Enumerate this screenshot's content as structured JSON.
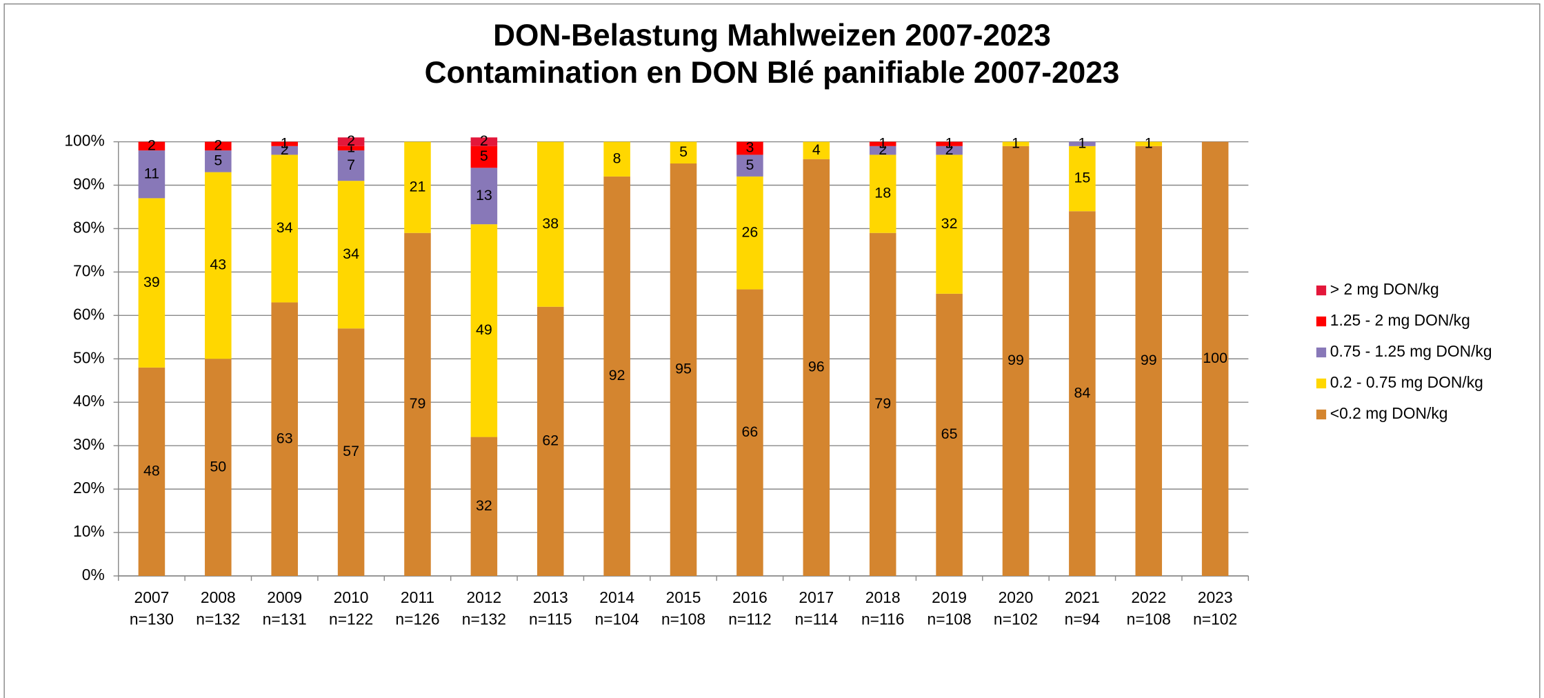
{
  "chart_data": {
    "type": "stacked_bar_100",
    "title": [
      "DON-Belastung Mahlweizen 2007-2023",
      "Contamination en DON Blé panifiable 2007-2023"
    ],
    "categories": [
      "2007",
      "2008",
      "2009",
      "2010",
      "2011",
      "2012",
      "2013",
      "2014",
      "2015",
      "2016",
      "2017",
      "2018",
      "2019",
      "2020",
      "2021",
      "2022",
      "2023"
    ],
    "sample_sizes": [
      "n=130",
      "n=132",
      "n=131",
      "n=122",
      "n=126",
      "n=132",
      "n=115",
      "n=104",
      "n=108",
      "n=112",
      "n=114",
      "n=116",
      "n=108",
      "n=102",
      "n=94",
      "n=108",
      "n=102"
    ],
    "series": [
      {
        "name": "<0.2 mg DON/kg",
        "color": "#d4852f",
        "values": [
          48,
          50,
          63,
          57,
          79,
          32,
          62,
          92,
          95,
          66,
          96,
          79,
          65,
          99,
          84,
          99,
          100
        ]
      },
      {
        "name": "0.2 - 0.75 mg DON/kg",
        "color": "#ffd700",
        "values": [
          39,
          43,
          34,
          34,
          21,
          49,
          38,
          8,
          5,
          26,
          4,
          18,
          32,
          1,
          15,
          1,
          null
        ]
      },
      {
        "name": "0.75 - 1.25 mg DON/kg",
        "color": "#8878b8",
        "values": [
          11,
          5,
          2,
          7,
          null,
          13,
          null,
          null,
          null,
          5,
          null,
          2,
          2,
          null,
          1,
          null,
          null
        ]
      },
      {
        "name": "1.25 - 2 mg DON/kg",
        "color": "#ff0000",
        "values": [
          2,
          2,
          1,
          1,
          null,
          5,
          null,
          null,
          null,
          3,
          null,
          1,
          1,
          null,
          null,
          null,
          null
        ]
      },
      {
        "name": "> 2 mg DON/kg",
        "color": "#e3173a",
        "values": [
          null,
          null,
          null,
          2,
          null,
          2,
          null,
          null,
          null,
          null,
          null,
          null,
          null,
          null,
          null,
          null,
          null
        ]
      }
    ],
    "ylim": [
      0,
      100
    ],
    "yticks": [
      {
        "value": 0,
        "label": "0%"
      },
      {
        "value": 10,
        "label": "10%"
      },
      {
        "value": 20,
        "label": "20%"
      },
      {
        "value": 30,
        "label": "30%"
      },
      {
        "value": 40,
        "label": "40%"
      },
      {
        "value": 50,
        "label": "50%"
      },
      {
        "value": 60,
        "label": "60%"
      },
      {
        "value": 70,
        "label": "70%"
      },
      {
        "value": 80,
        "label": "80%"
      },
      {
        "value": 90,
        "label": "90%"
      },
      {
        "value": 100,
        "label": "100%"
      }
    ],
    "grid": true,
    "legend": "right"
  }
}
